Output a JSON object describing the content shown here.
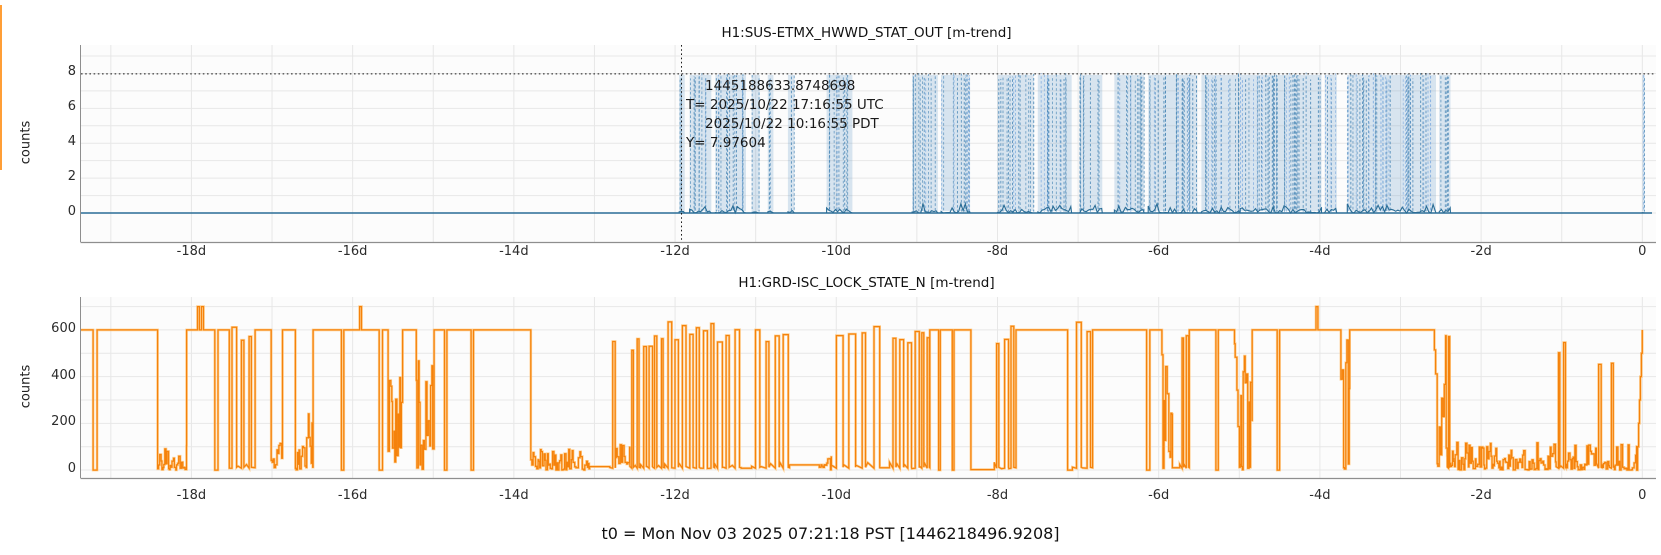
{
  "app": {
    "t0_label": "t0 = Mon Nov 03 2025 07:21:18 PST [1446218496.9208]",
    "accent_blue": "#4e8ab8",
    "accent_blue_dark": "#2a6d96",
    "accent_orange": "#f5820b",
    "grid_color": "#e7e7e7",
    "spine_color": "#8e8e8e"
  },
  "seed": 1337,
  "chart_data": [
    {
      "type": "line",
      "title": "H1:SUS-ETMX_HWWD_STAT_OUT [m-trend]",
      "ylabel": "counts",
      "x_unit": "days relative to t0",
      "xlim": [
        -19.37,
        0.12
      ],
      "ylim": [
        -1.66,
        9.63
      ],
      "yticks": [
        0,
        2,
        4,
        6,
        8
      ],
      "xtick_values": [
        -18,
        -16,
        -14,
        -12,
        -10,
        -8,
        -6,
        -4,
        -2,
        0
      ],
      "xtick_labels": [
        "-18d",
        "-16d",
        "-14d",
        "-12d",
        "-10d",
        "-8d",
        "-6d",
        "-4d",
        "-2d",
        "0"
      ],
      "grid_x_step_days": 1,
      "grid_y_step": 1,
      "baseline_value": 0,
      "burst_max": 7.97,
      "bursts": [
        [
          -11.95,
          -11.88,
          0.8
        ],
        [
          -11.82,
          -11.55,
          0.8
        ],
        [
          -11.5,
          -11.12,
          0.85
        ],
        [
          -11.05,
          -10.95,
          0.55
        ],
        [
          -10.85,
          -10.78,
          0.5
        ],
        [
          -10.6,
          -10.52,
          0.35
        ],
        [
          -10.12,
          -9.8,
          0.75
        ],
        [
          -9.06,
          -8.74,
          0.85
        ],
        [
          -8.7,
          -8.34,
          0.85
        ],
        [
          -8.0,
          -7.55,
          0.8
        ],
        [
          -7.5,
          -7.08,
          0.8
        ],
        [
          -6.98,
          -6.7,
          0.75
        ],
        [
          -6.55,
          -6.18,
          0.85
        ],
        [
          -6.13,
          -5.52,
          0.9
        ],
        [
          -5.47,
          -5.0,
          0.9
        ],
        [
          -4.99,
          -3.98,
          0.92
        ],
        [
          -3.94,
          -3.79,
          0.8
        ],
        [
          -3.66,
          -2.56,
          0.92
        ],
        [
          -2.52,
          -2.38,
          0.8
        ],
        [
          0.0,
          0.03,
          1.0
        ]
      ],
      "cursor": {
        "gps": "1445188633.8748698",
        "utc": "T= 2025/10/22 17:16:55 UTC",
        "local": "2025/10/22 10:16:55 PDT",
        "y_label": "Y= 7.97604",
        "x_day": -11.92,
        "y_value": 7.97604
      }
    },
    {
      "type": "line",
      "title": "H1:GRD-ISC_LOCK_STATE_N [m-trend]",
      "ylabel": "counts",
      "x_unit": "days relative to t0",
      "xlim": [
        -19.37,
        0.12
      ],
      "ylim": [
        -34,
        741
      ],
      "yticks": [
        0,
        200,
        400,
        600
      ],
      "xtick_values": [
        -18,
        -16,
        -14,
        -12,
        -10,
        -8,
        -6,
        -4,
        -2,
        0
      ],
      "xtick_labels": [
        "-18d",
        "-16d",
        "-14d",
        "-12d",
        "-10d",
        "-8d",
        "-6d",
        "-4d",
        "-2d",
        "0"
      ],
      "grid_x_step_days": 1,
      "grid_y_step": 100,
      "segments": [
        [
          -19.37,
          -19.22,
          "flat",
          600
        ],
        [
          -19.22,
          -19.17,
          "dip",
          0
        ],
        [
          -19.17,
          -18.42,
          "flat",
          600
        ],
        [
          -18.42,
          -18.06,
          "chat",
          0,
          110
        ],
        [
          -18.06,
          -17.94,
          "flat",
          600
        ],
        [
          -17.94,
          -17.84,
          "spikes",
          700,
          2
        ],
        [
          -17.84,
          -17.71,
          "flat",
          600
        ],
        [
          -17.71,
          -17.67,
          "dip",
          0
        ],
        [
          -17.67,
          -17.53,
          "flat",
          600
        ],
        [
          -17.53,
          -17.21,
          "pulses",
          600,
          3
        ],
        [
          -17.21,
          -17.01,
          "flat",
          600
        ],
        [
          -17.01,
          -16.87,
          "chat",
          0,
          160
        ],
        [
          -16.87,
          -16.71,
          "flat",
          600
        ],
        [
          -16.71,
          -16.57,
          "chat",
          0,
          130
        ],
        [
          -16.57,
          -16.49,
          "chat",
          0,
          340
        ],
        [
          -16.49,
          -16.14,
          "flat",
          600
        ],
        [
          -16.14,
          -16.11,
          "dip",
          0
        ],
        [
          -16.11,
          -15.94,
          "flat",
          600
        ],
        [
          -15.94,
          -15.87,
          "spikes",
          700,
          1
        ],
        [
          -15.87,
          -15.67,
          "flat",
          600
        ],
        [
          -15.67,
          -15.63,
          "dip",
          0
        ],
        [
          -15.63,
          -15.56,
          "flat",
          600
        ],
        [
          -15.56,
          -15.38,
          "chat",
          0,
          500
        ],
        [
          -15.38,
          -15.21,
          "flat",
          600
        ],
        [
          -15.21,
          -14.99,
          "chat",
          0,
          480
        ],
        [
          -14.99,
          -14.86,
          "flat",
          600
        ],
        [
          -14.86,
          -14.83,
          "dip",
          0
        ],
        [
          -14.83,
          -14.53,
          "flat",
          600
        ],
        [
          -14.53,
          -14.5,
          "dip",
          0
        ],
        [
          -14.5,
          -13.79,
          "flat",
          600
        ],
        [
          -13.79,
          -13.06,
          "chat",
          0,
          95
        ],
        [
          -13.06,
          -12.81,
          "flat",
          15
        ],
        [
          -12.81,
          -12.74,
          "pulses",
          560,
          1
        ],
        [
          -12.74,
          -12.56,
          "chat",
          25,
          130
        ],
        [
          -12.56,
          -12.43,
          "pulses",
          545,
          2
        ],
        [
          -12.43,
          -12.13,
          "pulses",
          575,
          4
        ],
        [
          -12.13,
          -11.51,
          "pulses",
          610,
          7
        ],
        [
          -11.51,
          -11.18,
          "pulses",
          600,
          3
        ],
        [
          -11.18,
          -11.05,
          "flat",
          8
        ],
        [
          -11.05,
          -10.58,
          "pulses",
          575,
          4
        ],
        [
          -10.58,
          -10.21,
          "flat",
          22
        ],
        [
          -10.21,
          -10.06,
          "chat",
          0,
          85
        ],
        [
          -10.06,
          -9.46,
          "pulses",
          600,
          4
        ],
        [
          -9.46,
          -9.34,
          "flat",
          10
        ],
        [
          -9.34,
          -8.97,
          "pulses",
          600,
          4
        ],
        [
          -8.97,
          -8.84,
          "pulses",
          600,
          2
        ],
        [
          -8.84,
          -8.73,
          "flat",
          600
        ],
        [
          -8.73,
          -8.71,
          "dip",
          0
        ],
        [
          -8.71,
          -8.56,
          "flat",
          600
        ],
        [
          -8.56,
          -8.54,
          "dip",
          0
        ],
        [
          -8.54,
          -8.33,
          "flat",
          600
        ],
        [
          -8.33,
          -8.04,
          "flat",
          2
        ],
        [
          -8.04,
          -7.77,
          "pulses",
          600,
          3
        ],
        [
          -7.77,
          -7.13,
          "flat",
          600
        ],
        [
          -7.13,
          -7.07,
          "dip",
          0
        ],
        [
          -7.07,
          -6.82,
          "pulses",
          600,
          2
        ],
        [
          -6.82,
          -6.15,
          "flat",
          600
        ],
        [
          -6.15,
          -6.11,
          "dip",
          0
        ],
        [
          -6.11,
          -5.96,
          "flat",
          600
        ],
        [
          -5.96,
          -5.83,
          "chat",
          0,
          520
        ],
        [
          -5.83,
          -5.74,
          "flat",
          10
        ],
        [
          -5.74,
          -5.62,
          "pulses",
          600,
          2
        ],
        [
          -5.62,
          -5.29,
          "flat",
          600
        ],
        [
          -5.29,
          -5.26,
          "dip",
          0
        ],
        [
          -5.26,
          -5.06,
          "flat",
          600
        ],
        [
          -5.06,
          -4.84,
          "chat",
          0,
          560
        ],
        [
          -4.84,
          -4.53,
          "flat",
          600
        ],
        [
          -4.53,
          -4.5,
          "dip",
          0
        ],
        [
          -4.5,
          -4.07,
          "flat",
          600
        ],
        [
          -4.07,
          -4.01,
          "spikes",
          700,
          1
        ],
        [
          -4.01,
          -3.74,
          "flat",
          600
        ],
        [
          -3.74,
          -3.63,
          "chat",
          0,
          560
        ],
        [
          -3.63,
          -2.58,
          "flat",
          600
        ],
        [
          -2.58,
          -2.42,
          "chat",
          0,
          580
        ],
        [
          -2.42,
          -2.39,
          "pulses",
          600,
          1
        ],
        [
          -2.39,
          -1.07,
          "chat",
          0,
          120
        ],
        [
          -1.07,
          -0.95,
          "pulses",
          520,
          2
        ],
        [
          -0.95,
          -0.57,
          "chat",
          0,
          110
        ],
        [
          -0.57,
          -0.5,
          "pulses",
          490,
          1
        ],
        [
          -0.5,
          -0.41,
          "chat",
          0,
          100
        ],
        [
          -0.41,
          -0.36,
          "pulses",
          490,
          1
        ],
        [
          -0.36,
          -0.07,
          "chat",
          0,
          110
        ],
        [
          -0.07,
          0.0,
          "ramp",
          0,
          600
        ]
      ]
    }
  ]
}
